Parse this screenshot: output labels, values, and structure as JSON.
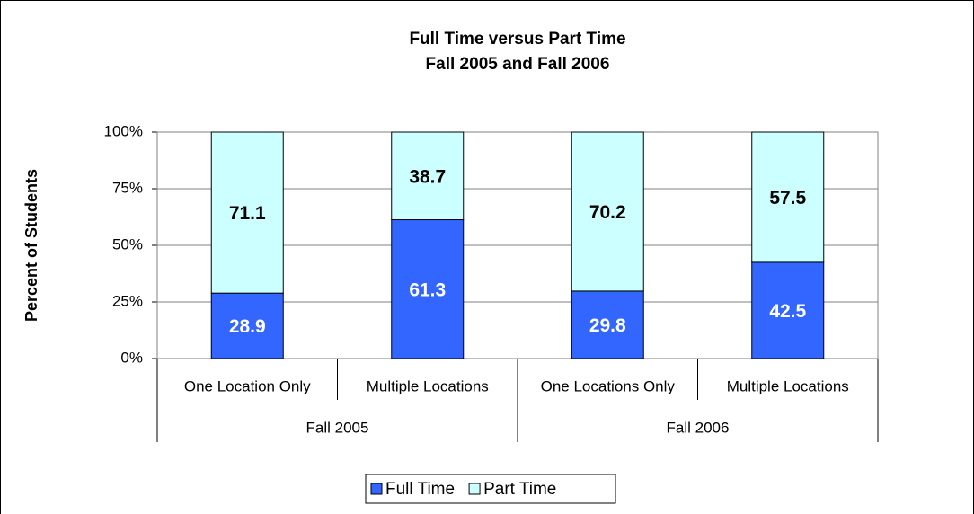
{
  "chart_data": {
    "type": "stacked_bar",
    "title": "Full Time versus Part Time",
    "subtitle": "Fall 2005 and Fall 2006",
    "y_label": "Percent of Students",
    "groups": [
      {
        "label": "Fall 2005",
        "categories": [
          "One Location Only",
          "Multiple Locations"
        ]
      },
      {
        "label": "Fall 2006",
        "categories": [
          "One Locations Only",
          "Multiple Locations"
        ]
      }
    ],
    "series": [
      {
        "name": "Full Time",
        "color": "#3366ff",
        "label_color": "#ffffff",
        "values": [
          28.9,
          61.3,
          29.8,
          42.5
        ]
      },
      {
        "name": "Part Time",
        "color": "#ccffff",
        "label_color": "#000000",
        "values": [
          71.1,
          38.7,
          70.2,
          57.5
        ]
      }
    ],
    "ylim": [
      0,
      100
    ],
    "yticks": [
      {
        "value": 0,
        "label": "0%"
      },
      {
        "value": 25,
        "label": "25%"
      },
      {
        "value": 50,
        "label": "50%"
      },
      {
        "value": 75,
        "label": "75%"
      },
      {
        "value": 100,
        "label": "100%"
      }
    ],
    "grid": true,
    "legend": "bottom"
  }
}
